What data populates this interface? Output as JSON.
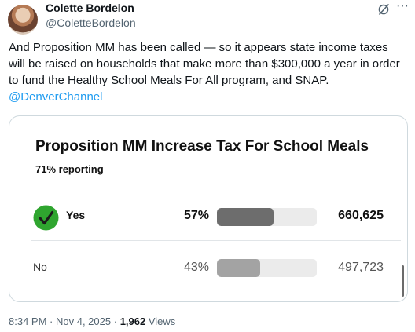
{
  "author": {
    "name": "Colette Bordelon",
    "handle": "@ColetteBordelon"
  },
  "post": {
    "text": "And Proposition MM has been called — so it appears state income taxes will be raised on households that make more than $300,000 a year in order to fund the Healthy School Meals For All program, and SNAP.",
    "mention": "@DenverChannel"
  },
  "card": {
    "title": "Proposition MM Increase Tax For School Meals",
    "reporting": "71% reporting",
    "results": [
      {
        "label": "Yes",
        "percent": "57%",
        "share": 0.57,
        "votes": "660,625",
        "winner": true
      },
      {
        "label": "No",
        "percent": "43%",
        "share": 0.43,
        "votes": "497,723",
        "winner": false
      }
    ]
  },
  "meta": {
    "time": "8:34 PM",
    "date": "Nov 4, 2025",
    "views_count": "1,962",
    "views_label": "Views"
  },
  "icons": {
    "grok": "grok-icon",
    "more": "more-icon",
    "winner": "check-icon"
  },
  "colors": {
    "link": "#1d9bf0",
    "winner_check": "#2fa52f",
    "bar_yes": "#6d6d6d",
    "bar_no": "#a3a3a3"
  }
}
